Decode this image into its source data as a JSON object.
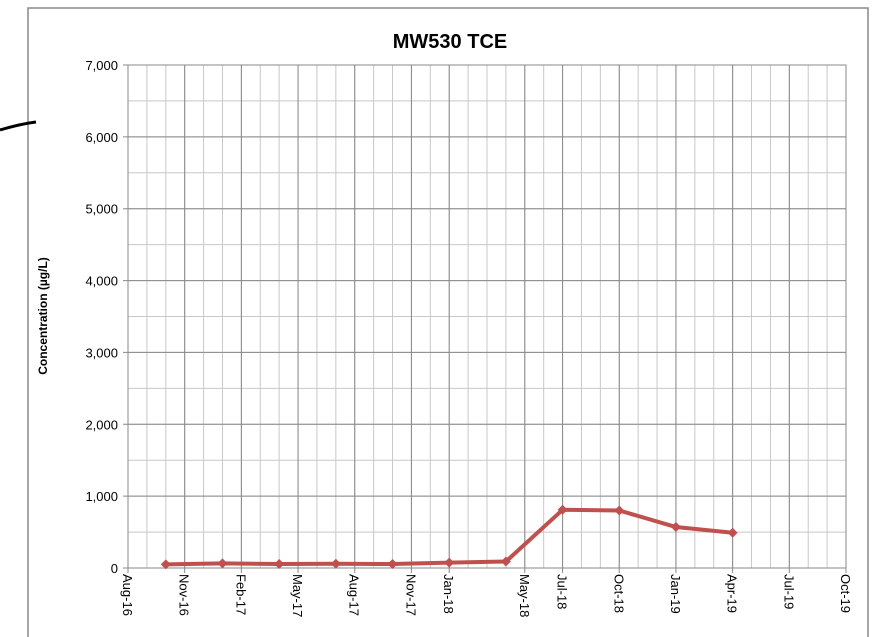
{
  "chart_data": {
    "type": "line",
    "title": "MW530 TCE",
    "y_label": "Concentration (µg/L)",
    "x": [
      "2016-10",
      "2017-01",
      "2017-04",
      "2017-07",
      "2017-10",
      "2018-01",
      "2018-04",
      "2018-07",
      "2018-10",
      "2019-01",
      "2019-04"
    ],
    "series": [
      {
        "name": "TCE",
        "color": "#c0504d",
        "values": [
          50,
          65,
          55,
          60,
          55,
          75,
          90,
          810,
          800,
          570,
          490
        ]
      }
    ],
    "xlim": [
      "2016-08",
      "2019-10"
    ],
    "xticks": [
      {
        "value": "2016-08",
        "label": "Aug-16"
      },
      {
        "value": "2016-11",
        "label": "Nov-16"
      },
      {
        "value": "2017-02",
        "label": "Feb-17"
      },
      {
        "value": "2017-05",
        "label": "May-17"
      },
      {
        "value": "2017-08",
        "label": "Aug-17"
      },
      {
        "value": "2017-11",
        "label": "Nov-17"
      },
      {
        "value": "2018-01",
        "label": "Jan-18"
      },
      {
        "value": "2018-05",
        "label": "May-18"
      },
      {
        "value": "2018-07",
        "label": "Jul-18"
      },
      {
        "value": "2018-10",
        "label": "Oct-18"
      },
      {
        "value": "2019-01",
        "label": "Jan-19"
      },
      {
        "value": "2019-04",
        "label": "Apr-19"
      },
      {
        "value": "2019-07",
        "label": "Jul-19"
      },
      {
        "value": "2019-10",
        "label": "Oct-19"
      }
    ],
    "ylim": [
      0,
      7000
    ],
    "yticks": [
      0,
      {
        "value": 1000,
        "label": "1,000"
      },
      {
        "value": 2000,
        "label": "2,000"
      },
      {
        "value": 3000,
        "label": "3,000"
      },
      {
        "value": 4000,
        "label": "4,000"
      },
      {
        "value": 5000,
        "label": "5,000"
      },
      {
        "value": 6000,
        "label": "6,000"
      },
      {
        "value": 7000,
        "label": "7,000"
      }
    ],
    "grid": true
  }
}
